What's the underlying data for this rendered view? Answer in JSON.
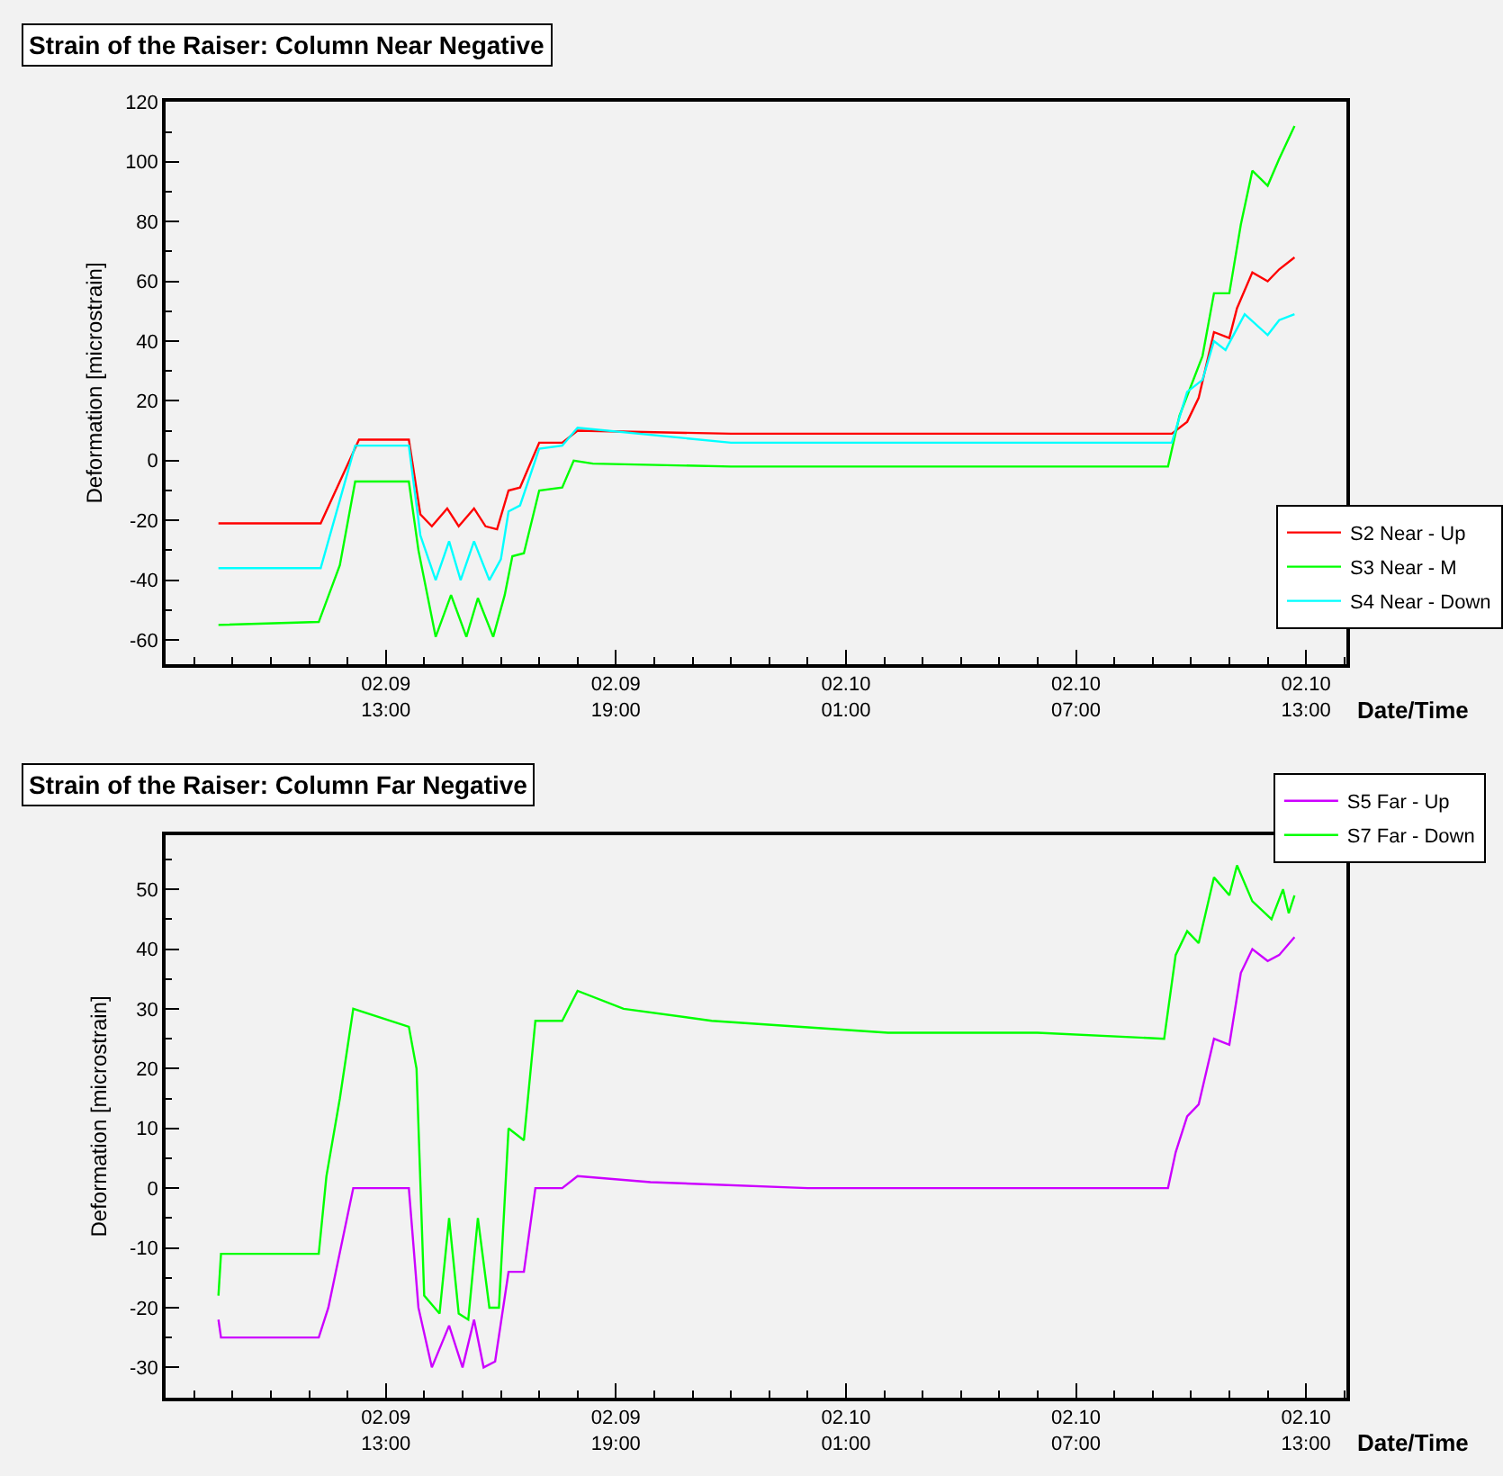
{
  "chart_data": [
    {
      "type": "line",
      "title": "Strain of the Raiser: Column Near Negative",
      "xlabel": "Date/Time",
      "ylabel": "Deformation [microstrain]",
      "xlim": [
        "--02-09T07:15",
        "--02-10T14:03"
      ],
      "ylim": [
        -68,
        120
      ],
      "xticks": [
        {
          "value": "--02-09T13:00",
          "label": "02.09\n13:00"
        },
        {
          "value": "--02-09T19:00",
          "label": "02.09\n19:00"
        },
        {
          "value": "--02-10T01:00",
          "label": "02.10\n01:00"
        },
        {
          "value": "--02-10T07:00",
          "label": "02.10\n07:00"
        },
        {
          "value": "--02-10T13:00",
          "label": "02.10\n13:00"
        }
      ],
      "yticks": [
        -60,
        -40,
        -20,
        0,
        20,
        40,
        60,
        80,
        100,
        120
      ],
      "grid": false,
      "legend": "right",
      "marker": "none",
      "line_style": "solid",
      "series": [
        {
          "name": "S2 Near - Up",
          "color": "#ff0000",
          "x": [
            "--02-09T08:38",
            "--02-09T11:18",
            "--02-09T12:18",
            "--02-09T13:36",
            "--02-09T13:54",
            "--02-09T14:12",
            "--02-09T14:36",
            "--02-09T14:54",
            "--02-09T15:18",
            "--02-09T15:36",
            "--02-09T15:54",
            "--02-09T16:12",
            "--02-09T16:30",
            "--02-09T17:00",
            "--02-09T17:36",
            "--02-09T18:00",
            "--02-09T22:00",
            "--02-10T02:00",
            "--02-10T06:00",
            "--02-10T09:30",
            "--02-10T09:54",
            "--02-10T10:12",
            "--02-10T10:36",
            "--02-10T11:00",
            "--02-10T11:12",
            "--02-10T11:36",
            "--02-10T12:00",
            "--02-10T12:18",
            "--02-10T12:42"
          ],
          "values": [
            -21,
            -21,
            7,
            7,
            -18,
            -22,
            -16,
            -22,
            -16,
            -22,
            -23,
            -10,
            -9,
            6,
            6,
            10,
            9,
            9,
            9,
            9,
            13,
            21,
            43,
            41,
            51,
            63,
            60,
            64,
            68
          ]
        },
        {
          "name": "S3 Near - M",
          "color": "#00ff00",
          "x": [
            "--02-09T08:38",
            "--02-09T11:15",
            "--02-09T11:48",
            "--02-09T12:12",
            "--02-09T13:36",
            "--02-09T13:51",
            "--02-09T14:18",
            "--02-09T14:42",
            "--02-09T15:06",
            "--02-09T15:24",
            "--02-09T15:48",
            "--02-09T16:06",
            "--02-09T16:18",
            "--02-09T16:36",
            "--02-09T17:00",
            "--02-09T17:36",
            "--02-09T17:54",
            "--02-09T18:24",
            "--02-09T22:00",
            "--02-10T02:00",
            "--02-10T06:00",
            "--02-10T09:24",
            "--02-10T09:42",
            "--02-10T10:18",
            "--02-10T10:36",
            "--02-10T11:00",
            "--02-10T11:18",
            "--02-10T11:36",
            "--02-10T12:00",
            "--02-10T12:18",
            "--02-10T12:42"
          ],
          "values": [
            -55,
            -54,
            -35,
            -7,
            -7,
            -30,
            -59,
            -45,
            -59,
            -46,
            -59,
            -45,
            -32,
            -31,
            -10,
            -9,
            0,
            -1,
            -2,
            -2,
            -2,
            -2,
            15,
            35,
            56,
            56,
            79,
            97,
            92,
            101,
            112
          ]
        },
        {
          "name": "S4 Near - Down",
          "color": "#00ffff",
          "x": [
            "--02-09T08:38",
            "--02-09T11:18",
            "--02-09T12:12",
            "--02-09T13:36",
            "--02-09T13:54",
            "--02-09T14:18",
            "--02-09T14:39",
            "--02-09T14:57",
            "--02-09T15:18",
            "--02-09T15:42",
            "--02-09T16:00",
            "--02-09T16:12",
            "--02-09T16:30",
            "--02-09T17:00",
            "--02-09T17:36",
            "--02-09T18:00",
            "--02-09T22:00",
            "--02-10T02:00",
            "--02-10T06:00",
            "--02-10T09:30",
            "--02-10T09:54",
            "--02-10T10:18",
            "--02-10T10:36",
            "--02-10T10:54",
            "--02-10T11:24",
            "--02-10T12:00",
            "--02-10T12:18",
            "--02-10T12:42"
          ],
          "values": [
            -36,
            -36,
            5,
            5,
            -25,
            -40,
            -27,
            -40,
            -27,
            -40,
            -33,
            -17,
            -15,
            4,
            5,
            11,
            6,
            6,
            6,
            6,
            23,
            27,
            40,
            37,
            49,
            42,
            47,
            49
          ]
        }
      ]
    },
    {
      "type": "line",
      "title": "Strain of the Raiser: Column Far Negative",
      "xlabel": "Date/Time",
      "ylabel": "Deformation [microstrain]",
      "xlim": [
        "--02-09T07:15",
        "--02-10T14:03"
      ],
      "ylim": [
        -35,
        59
      ],
      "xticks": [
        {
          "value": "--02-09T13:00",
          "label": "02.09\n13:00"
        },
        {
          "value": "--02-09T19:00",
          "label": "02.09\n19:00"
        },
        {
          "value": "--02-10T01:00",
          "label": "02.10\n01:00"
        },
        {
          "value": "--02-10T07:00",
          "label": "02.10\n07:00"
        },
        {
          "value": "--02-10T13:00",
          "label": "02.10\n13:00"
        }
      ],
      "yticks": [
        -30,
        -20,
        -10,
        0,
        10,
        20,
        30,
        40,
        50
      ],
      "grid": false,
      "legend": "top right",
      "marker": "none",
      "line_style": "solid",
      "series": [
        {
          "name": "S5 Far - Up",
          "color": "#cc00ff",
          "x": [
            "--02-09T08:38",
            "--02-09T08:42",
            "--02-09T11:15",
            "--02-09T11:30",
            "--02-09T12:09",
            "--02-09T13:36",
            "--02-09T13:51",
            "--02-09T14:12",
            "--02-09T14:39",
            "--02-09T15:00",
            "--02-09T15:18",
            "--02-09T15:33",
            "--02-09T15:51",
            "--02-09T16:12",
            "--02-09T16:36",
            "--02-09T16:54",
            "--02-09T17:36",
            "--02-09T18:00",
            "--02-09T19:54",
            "--02-10T00:00",
            "--02-10T04:00",
            "--02-10T09:24",
            "--02-10T09:36",
            "--02-10T09:54",
            "--02-10T10:12",
            "--02-10T10:36",
            "--02-10T11:00",
            "--02-10T11:18",
            "--02-10T11:36",
            "--02-10T12:00",
            "--02-10T12:18",
            "--02-10T12:42"
          ],
          "values": [
            -22,
            -25,
            -25,
            -20,
            0,
            0,
            -20,
            -30,
            -23,
            -30,
            -22,
            -30,
            -29,
            -14,
            -14,
            0,
            0,
            2,
            1,
            0,
            0,
            0,
            6,
            12,
            14,
            25,
            24,
            36,
            40,
            38,
            39,
            42
          ]
        },
        {
          "name": "S7 Far - Down",
          "color": "#00ff00",
          "x": [
            "--02-09T08:38",
            "--02-09T08:42",
            "--02-09T11:15",
            "--02-09T11:27",
            "--02-09T11:48",
            "--02-09T12:09",
            "--02-09T13:36",
            "--02-09T13:48",
            "--02-09T14:00",
            "--02-09T14:24",
            "--02-09T14:39",
            "--02-09T14:54",
            "--02-09T15:09",
            "--02-09T15:24",
            "--02-09T15:42",
            "--02-09T15:57",
            "--02-09T16:12",
            "--02-09T16:36",
            "--02-09T16:54",
            "--02-09T17:36",
            "--02-09T18:00",
            "--02-09T19:12",
            "--02-09T21:30",
            "--02-10T02:06",
            "--02-10T06:00",
            "--02-10T09:18",
            "--02-10T09:36",
            "--02-10T09:54",
            "--02-10T10:12",
            "--02-10T10:36",
            "--02-10T11:00",
            "--02-10T11:12",
            "--02-10T11:36",
            "--02-10T12:06",
            "--02-10T12:24",
            "--02-10T12:33",
            "--02-10T12:42"
          ],
          "values": [
            -18,
            -11,
            -11,
            2,
            15,
            30,
            27,
            20,
            -18,
            -21,
            -5,
            -21,
            -22,
            -5,
            -20,
            -20,
            10,
            8,
            28,
            28,
            33,
            30,
            28,
            26,
            26,
            25,
            39,
            43,
            41,
            52,
            49,
            54,
            48,
            45,
            50,
            46,
            49
          ]
        }
      ]
    }
  ]
}
